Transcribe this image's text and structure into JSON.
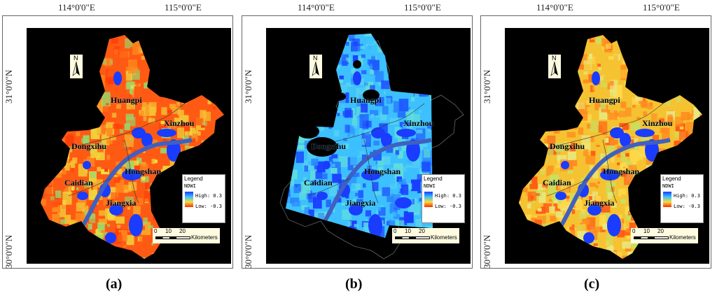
{
  "longitude_ticks": [
    "114°0'0\"E",
    "115°0'0\"E"
  ],
  "latitude_ticks": [
    "31°0'0\"N",
    "30°0'0\"N"
  ],
  "panels": [
    {
      "label": "(a)",
      "places": {
        "huangpi": "Huangpi",
        "xinzhou": "Xinzhou",
        "dongxihu": "Dongxihu",
        "hongshan": "Hongshan",
        "caidian": "Caidian",
        "jiangxia": "Jiangxia"
      },
      "legend": {
        "title": "Legend",
        "name": "NDWI",
        "high": "High: 0.3",
        "low": "Low: -0.3"
      },
      "scale": {
        "n0": "0",
        "n1": "10",
        "n2": "20",
        "unit": "Kilometers"
      },
      "north": "N"
    },
    {
      "label": "(b)",
      "places": {
        "huangpi": "Huangpi",
        "xinzhou": "Xinzhou",
        "dongxihu": "Dongxihu",
        "hongshan": "Hongshan",
        "caidian": "Caidian",
        "jiangxia": "Jiangxia"
      },
      "legend": {
        "title": "Legend",
        "name": "NDWI",
        "high": "High: 0.3",
        "low": "Low: -0.3"
      },
      "scale": {
        "n0": "0",
        "n1": "10",
        "n2": "20",
        "unit": "Kilometers"
      },
      "north": "N"
    },
    {
      "label": "(c)",
      "places": {
        "huangpi": "Huangpi",
        "xinzhou": "Xinzhou",
        "dongxihu": "Dongxihu",
        "hongshan": "Hongshan",
        "caidian": "Caidian",
        "jiangxia": "Jiangxia"
      },
      "legend": {
        "title": "Legend",
        "name": "NDWI",
        "high": "High: 0.3",
        "low": "Low: -0.3"
      },
      "scale": {
        "n0": "0",
        "n1": "10",
        "n2": "20",
        "unit": "Kilometers"
      },
      "north": "N"
    }
  ],
  "colors": {
    "background": "#000000",
    "water": "#1a3cff",
    "low_ndwi": "#ff4a10",
    "mid_ndwi": "#f0d030",
    "high_ndwi": "#3cc0ff",
    "river": "#4060c0",
    "legend_ramp_top": "#1a3cff",
    "legend_ramp_bottom": "#ff2a00"
  }
}
